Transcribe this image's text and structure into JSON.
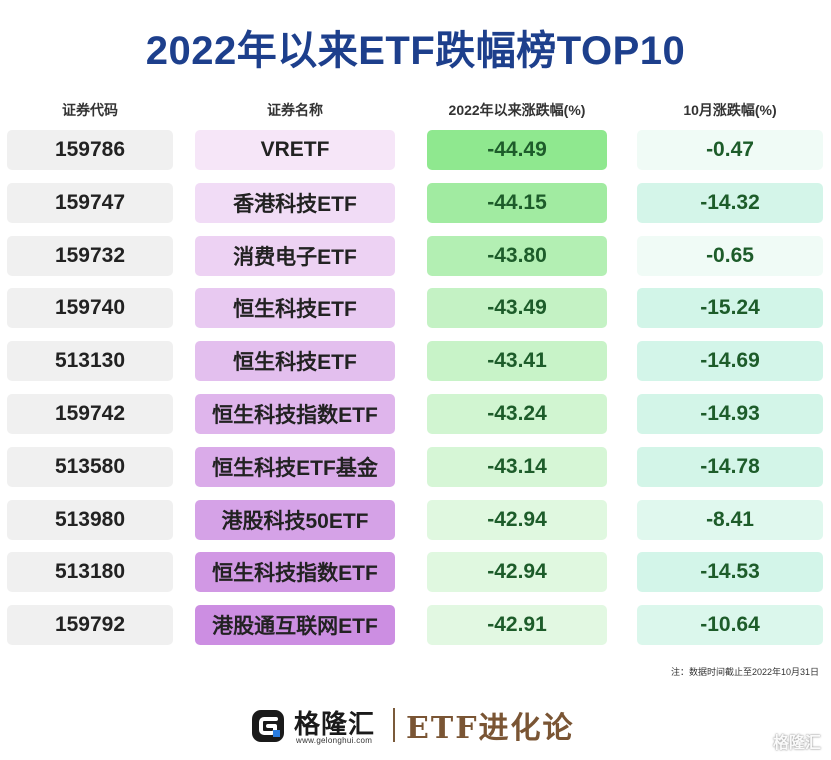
{
  "title": "2022年以来ETF跌幅榜TOP10",
  "headers": {
    "code": "证券代码",
    "name": "证券名称",
    "ytd": "2022年以来涨跌幅(%)",
    "oct": "10月涨跌幅(%)"
  },
  "chart_data": {
    "type": "table",
    "title": "2022年以来ETF跌幅榜TOP10",
    "columns": [
      "证券代码",
      "证券名称",
      "2022年以来涨跌幅(%)",
      "10月涨跌幅(%)"
    ],
    "rows": [
      {
        "code": "159786",
        "name": "VRETF",
        "ytd": "-44.49",
        "oct": "-0.47"
      },
      {
        "code": "159747",
        "name": "香港科技ETF",
        "ytd": "-44.15",
        "oct": "-14.32"
      },
      {
        "code": "159732",
        "name": "消费电子ETF",
        "ytd": "-43.80",
        "oct": "-0.65"
      },
      {
        "code": "159740",
        "name": "恒生科技ETF",
        "ytd": "-43.49",
        "oct": "-15.24"
      },
      {
        "code": "513130",
        "name": "恒生科技ETF",
        "ytd": "-43.41",
        "oct": "-14.69"
      },
      {
        "code": "159742",
        "name": "恒生科技指数ETF",
        "ytd": "-43.24",
        "oct": "-14.93"
      },
      {
        "code": "513580",
        "name": "恒生科技ETF基金",
        "ytd": "-43.14",
        "oct": "-14.78"
      },
      {
        "code": "513980",
        "name": "港股科技50ETF",
        "ytd": "-42.94",
        "oct": "-8.41"
      },
      {
        "code": "513180",
        "name": "恒生科技指数ETF",
        "ytd": "-42.94",
        "oct": "-14.53"
      },
      {
        "code": "159792",
        "name": "港股通互联网ETF",
        "ytd": "-42.91",
        "oct": "-10.64"
      }
    ]
  },
  "colors": {
    "name_light": "#f6e6f8",
    "name_dark": "#cc8ee2",
    "ytd_strong": "#8fe88f",
    "ytd_light": "#e2f8e2",
    "oct_strong": "#d2f5e8",
    "oct_light": "#f0fbf6"
  },
  "note": "注：数据时间截止至2022年10月31日",
  "footer": {
    "logo_text": "格隆汇",
    "logo_url": "www.gelonghui.com",
    "brand": "ETF进化论",
    "watermark": "格隆汇"
  }
}
